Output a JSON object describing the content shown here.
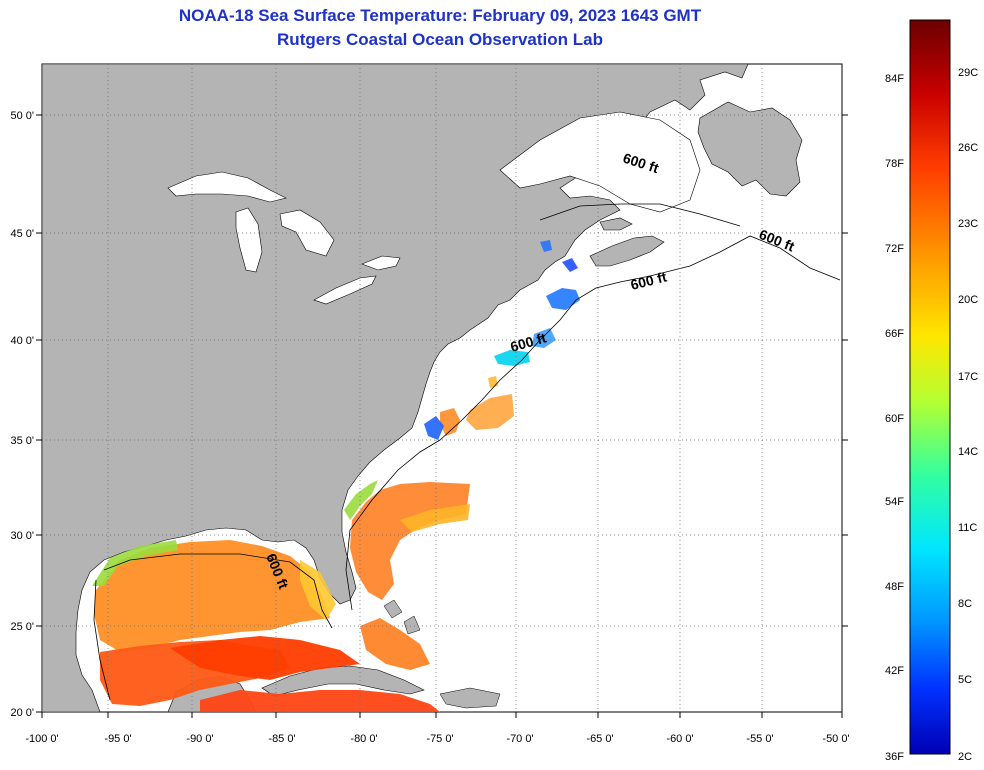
{
  "title": "NOAA-18 Sea Surface Temperature:  February 09, 2023 1643 GMT",
  "subtitle": "Rutgers Coastal Ocean Observation Lab",
  "map": {
    "lon_range": [
      -100,
      -50
    ],
    "lat_range": [
      20,
      52.5
    ],
    "lon_ticks": [
      "-100 0'",
      "-95 0'",
      "-90 0'",
      "-85 0'",
      "-80 0'",
      "-75 0'",
      "-70 0'",
      "-65 0'",
      "-60 0'",
      "-55 0'",
      "-50 0'"
    ],
    "lat_ticks": [
      "20 0'",
      "25 0'",
      "30 0'",
      "35 0'",
      "40 0'",
      "45 0'",
      "50 0'"
    ],
    "contour_label": "600 ft",
    "land_color": "#b4b4b4",
    "ocean_color": "#ffffff"
  },
  "colorbar": {
    "f_labels": [
      "84F",
      "78F",
      "72F",
      "66F",
      "60F",
      "54F",
      "48F",
      "42F",
      "36F"
    ],
    "c_labels": [
      "29C",
      "26C",
      "23C",
      "20C",
      "17C",
      "14C",
      "11C",
      "8C",
      "5C",
      "2C"
    ],
    "colors": [
      "#6b0000",
      "#c80000",
      "#ff3c00",
      "#ff9600",
      "#ffe600",
      "#b4ff32",
      "#32ffa0",
      "#00e6ff",
      "#0096ff",
      "#0032ff",
      "#0000b4"
    ]
  }
}
